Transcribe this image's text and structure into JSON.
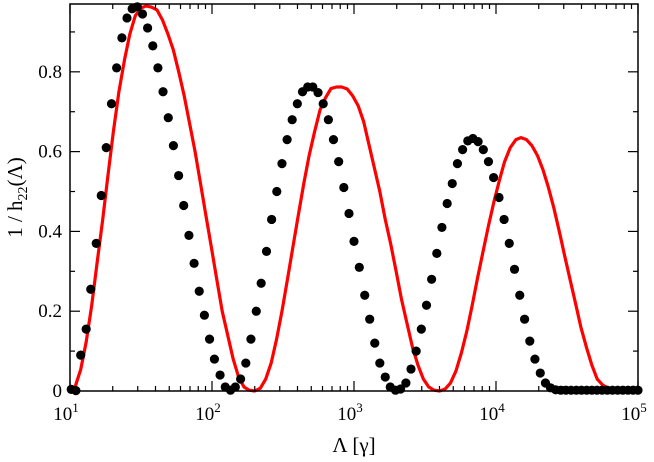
{
  "chart_data": {
    "type": "line",
    "xlabel": "Λ [γ]",
    "ylabel": {
      "main": "1 / h",
      "sub": "22",
      "suffix": "(Λ)"
    },
    "x_scale": "log",
    "xlim": [
      10,
      100000
    ],
    "ylim": [
      0,
      0.97
    ],
    "x_ticks": [
      {
        "value": 10,
        "base": "10",
        "exp": "1"
      },
      {
        "value": 100,
        "base": "10",
        "exp": "2"
      },
      {
        "value": 1000,
        "base": "10",
        "exp": "3"
      },
      {
        "value": 10000,
        "base": "10",
        "exp": "4"
      },
      {
        "value": 100000,
        "base": "10",
        "exp": "5"
      }
    ],
    "y_ticks": [
      {
        "value": 0,
        "label": "0"
      },
      {
        "value": 0.2,
        "label": "0.2"
      },
      {
        "value": 0.4,
        "label": "0.4"
      },
      {
        "value": 0.6,
        "label": "0.6"
      },
      {
        "value": 0.8,
        "label": "0.8"
      }
    ],
    "grid": false,
    "legend": "none",
    "series": [
      {
        "type": "line",
        "color": "#ff0000",
        "x": [
          10,
          10.9,
          11.9,
          13.0,
          14.2,
          15.5,
          17.0,
          18.5,
          20.2,
          22.1,
          24.2,
          26.4,
          28.8,
          31.5,
          34.4,
          37.6,
          41.0,
          44.8,
          48.9,
          53.4,
          58.3,
          63.7,
          69.6,
          76.0,
          83.0,
          90.6,
          99.0,
          108,
          118,
          129,
          141,
          154,
          168,
          183,
          200,
          219,
          239,
          261,
          285,
          311,
          340,
          371,
          405,
          443,
          483,
          528,
          577,
          630,
          688,
          751,
          820,
          896,
          978,
          1070,
          1170,
          1270,
          1390,
          1520,
          1660,
          1810,
          1980,
          2160,
          2360,
          2580,
          2820,
          3080,
          3360,
          3670,
          4010,
          4380,
          4780,
          5220,
          5700,
          6230,
          6800,
          7430,
          8110,
          8860,
          9680,
          10600,
          11500,
          12600,
          13800,
          15000,
          16400,
          17900,
          19600,
          21400,
          23400,
          25500,
          27900,
          30400,
          33200,
          36300,
          39600,
          43300,
          47300,
          51600,
          56400,
          61600,
          67200,
          73400,
          80200,
          87600,
          95600,
          100000
        ],
        "y": [
          0.0,
          0.012,
          0.054,
          0.123,
          0.213,
          0.32,
          0.43,
          0.54,
          0.65,
          0.75,
          0.83,
          0.895,
          0.94,
          0.96,
          0.965,
          0.962,
          0.955,
          0.93,
          0.895,
          0.855,
          0.8,
          0.74,
          0.67,
          0.6,
          0.52,
          0.44,
          0.36,
          0.28,
          0.2,
          0.14,
          0.08,
          0.035,
          0.01,
          0.002,
          0.0,
          0.007,
          0.03,
          0.07,
          0.13,
          0.2,
          0.28,
          0.36,
          0.44,
          0.52,
          0.59,
          0.65,
          0.705,
          0.735,
          0.758,
          0.762,
          0.762,
          0.757,
          0.74,
          0.715,
          0.675,
          0.62,
          0.56,
          0.5,
          0.43,
          0.37,
          0.3,
          0.23,
          0.17,
          0.11,
          0.065,
          0.03,
          0.01,
          0.002,
          0.0,
          0.005,
          0.02,
          0.05,
          0.095,
          0.15,
          0.215,
          0.285,
          0.35,
          0.415,
          0.475,
          0.53,
          0.575,
          0.61,
          0.63,
          0.635,
          0.63,
          0.615,
          0.59,
          0.555,
          0.51,
          0.46,
          0.4,
          0.34,
          0.28,
          0.22,
          0.16,
          0.11,
          0.065,
          0.03,
          0.015,
          0.007,
          0.003,
          0.002,
          0.002,
          0.002,
          0.002,
          0.002
        ]
      },
      {
        "type": "scatter",
        "color": "#000000",
        "x": [
          10.2,
          11.0,
          11.9,
          13.0,
          14.0,
          15.3,
          16.6,
          18.0,
          19.6,
          21.3,
          23.2,
          25.2,
          27.4,
          29.8,
          32.4,
          35.2,
          38.3,
          41.6,
          45.2,
          49.2,
          53.5,
          58.2,
          63.2,
          68.8,
          74.8,
          81.3,
          88.4,
          96.1,
          104,
          114,
          124,
          135,
          146,
          159,
          173,
          188,
          205,
          222,
          242,
          263,
          286,
          311,
          338,
          367,
          399,
          434,
          472,
          513,
          558,
          607,
          660,
          717,
          780,
          848,
          922,
          1000,
          1090,
          1190,
          1290,
          1400,
          1520,
          1660,
          1800,
          1960,
          2130,
          2320,
          2520,
          2740,
          2980,
          3240,
          3520,
          3830,
          4160,
          4530,
          4920,
          5350,
          5820,
          6330,
          6880,
          7480,
          8140,
          8850,
          9620,
          10500,
          11400,
          12400,
          13500,
          14700,
          15900,
          17300,
          18800,
          20500,
          22300,
          24200,
          26300,
          28600,
          31100,
          33800,
          36800,
          40000,
          43500,
          47300,
          51400,
          55900,
          60800,
          66100,
          71900,
          78200,
          85000,
          92400,
          100000
        ],
        "y": [
          0.004,
          0.001,
          0.09,
          0.155,
          0.255,
          0.37,
          0.49,
          0.61,
          0.72,
          0.81,
          0.885,
          0.935,
          0.958,
          0.963,
          0.945,
          0.91,
          0.865,
          0.81,
          0.75,
          0.685,
          0.615,
          0.54,
          0.465,
          0.39,
          0.32,
          0.25,
          0.19,
          0.13,
          0.08,
          0.04,
          0.01,
          0.002,
          0.01,
          0.03,
          0.07,
          0.13,
          0.2,
          0.27,
          0.35,
          0.43,
          0.5,
          0.57,
          0.63,
          0.68,
          0.72,
          0.75,
          0.762,
          0.762,
          0.748,
          0.72,
          0.68,
          0.63,
          0.575,
          0.51,
          0.445,
          0.375,
          0.31,
          0.24,
          0.18,
          0.12,
          0.07,
          0.035,
          0.01,
          0.002,
          0.005,
          0.02,
          0.055,
          0.1,
          0.155,
          0.215,
          0.28,
          0.345,
          0.41,
          0.47,
          0.52,
          0.57,
          0.605,
          0.627,
          0.633,
          0.625,
          0.605,
          0.575,
          0.535,
          0.485,
          0.43,
          0.37,
          0.305,
          0.24,
          0.18,
          0.125,
          0.08,
          0.045,
          0.02,
          0.008,
          0.003,
          0.002,
          0.002,
          0.002,
          0.002,
          0.002,
          0.002,
          0.002,
          0.002,
          0.002,
          0.002,
          0.002,
          0.002,
          0.002,
          0.002,
          0.002,
          0.002
        ]
      }
    ]
  }
}
